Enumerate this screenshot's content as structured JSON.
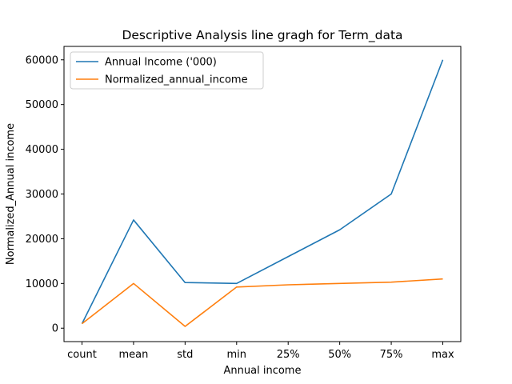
{
  "chart_data": {
    "type": "line",
    "title": "Descriptive Analysis line gragh for Term_data",
    "xlabel": "Annual income",
    "ylabel": "Normalized_Annual income",
    "categories": [
      "count",
      "mean",
      "std",
      "min",
      "25%",
      "50%",
      "75%",
      "max"
    ],
    "yticks": [
      0,
      10000,
      20000,
      30000,
      40000,
      50000,
      60000
    ],
    "ylim": [
      -3000,
      63000
    ],
    "grid": false,
    "legend_position": "top-left",
    "series": [
      {
        "name": "Annual Income ('000)",
        "color": "#1f77b4",
        "values": [
          1000,
          24200,
          10200,
          10000,
          16000,
          22000,
          30000,
          60000
        ]
      },
      {
        "name": "Normalized_annual_income",
        "color": "#ff7f0e",
        "values": [
          1000,
          10000,
          400,
          9200,
          9700,
          10000,
          10300,
          11000
        ]
      }
    ]
  }
}
